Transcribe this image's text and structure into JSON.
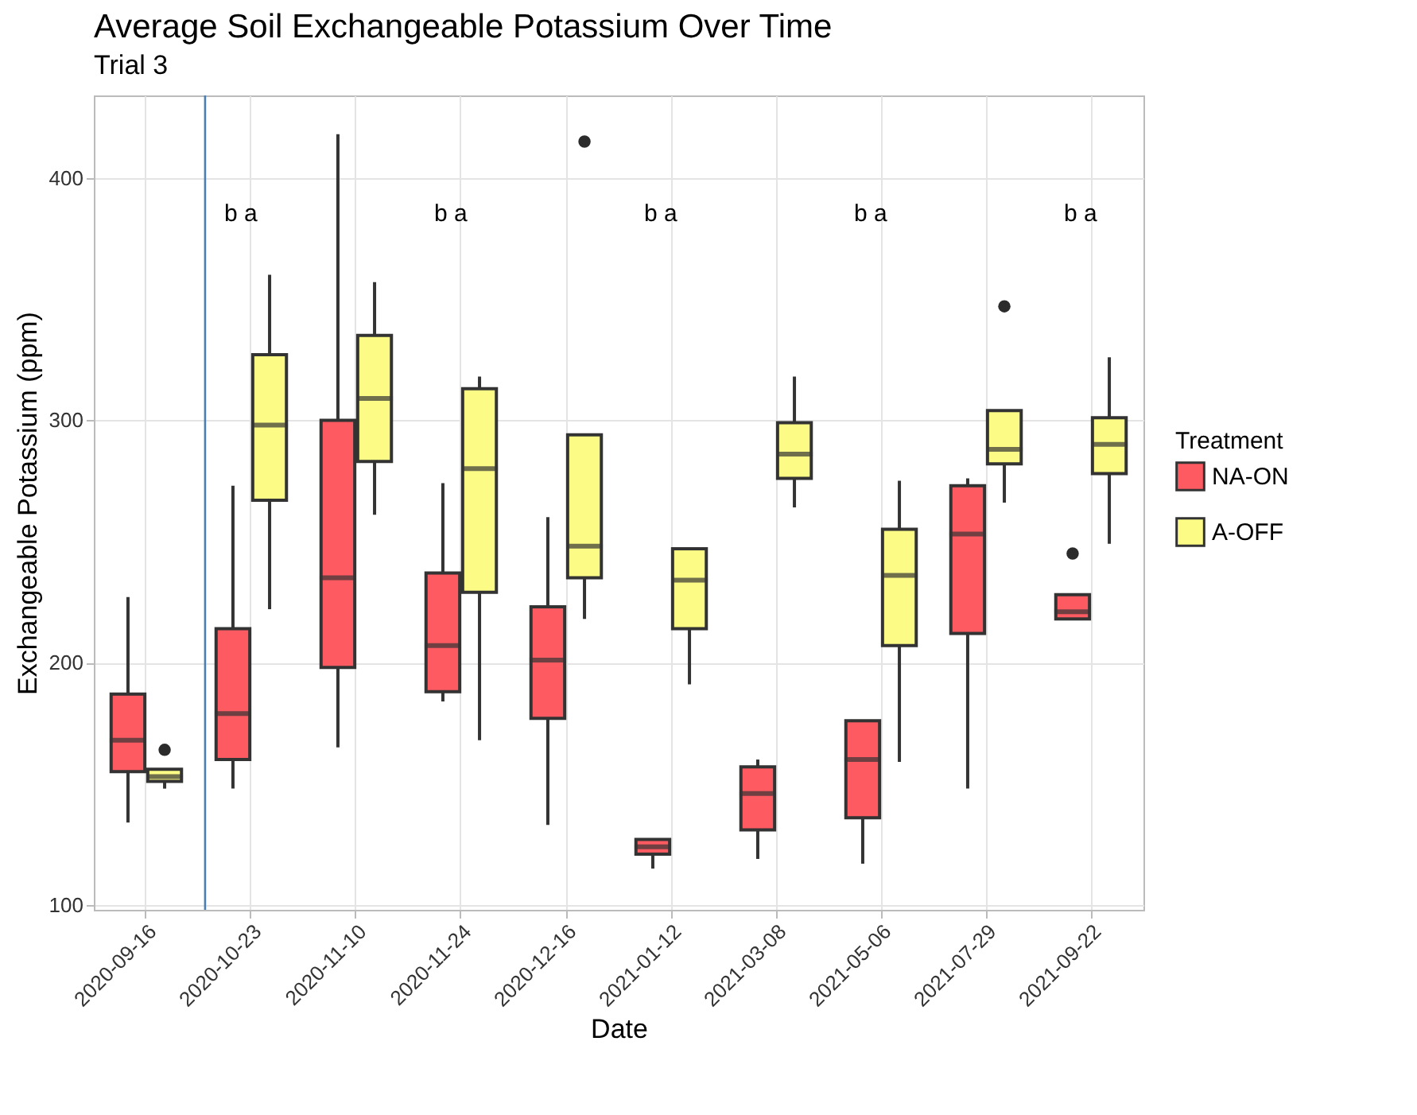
{
  "chart_data": {
    "type": "box",
    "title": "Average Soil Exchangeable Potassium Over Time",
    "subtitle": "Trial 3",
    "xlabel": "Date",
    "ylabel": "Exchangeable Potassium (ppm)",
    "legend_title": "Treatment",
    "legend": "right",
    "grid": true,
    "categories": [
      "2020-09-16",
      "2020-10-23",
      "2020-11-10",
      "2020-11-24",
      "2020-12-16",
      "2021-01-12",
      "2021-03-08",
      "2021-05-06",
      "2021-07-29",
      "2021-09-22"
    ],
    "ylim": [
      98,
      434
    ],
    "yticks": [
      100,
      200,
      300,
      400
    ],
    "series": [
      {
        "name": "NA-ON",
        "color": "#fe5a62",
        "boxes": [
          {
            "low": 134,
            "q1": 155,
            "median": 168,
            "q3": 187,
            "high": 227
          },
          {
            "low": 148,
            "q1": 160,
            "median": 179,
            "q3": 214,
            "high": 273
          },
          {
            "low": 165,
            "q1": 198,
            "median": 235,
            "q3": 300,
            "high": 418
          },
          {
            "low": 184,
            "q1": 188,
            "median": 207,
            "q3": 237,
            "high": 274
          },
          {
            "low": 133,
            "q1": 177,
            "median": 201,
            "q3": 223,
            "high": 260
          },
          {
            "low": 115,
            "q1": 121,
            "median": 124,
            "q3": 127,
            "high": 127
          },
          {
            "low": 119,
            "q1": 131,
            "median": 146,
            "q3": 157,
            "high": 160
          },
          {
            "low": 117,
            "q1": 136,
            "median": 160,
            "q3": 176,
            "high": 176
          },
          {
            "low": 148,
            "q1": 212,
            "median": 253,
            "q3": 273,
            "high": 276
          },
          {
            "low": 218,
            "q1": 218,
            "median": 221,
            "q3": 228,
            "high": 228,
            "outliers": [
              245
            ]
          }
        ]
      },
      {
        "name": "A-OFF",
        "color": "#fbfb85",
        "boxes": [
          {
            "low": 148,
            "q1": 151,
            "median": 153,
            "q3": 156,
            "high": 156,
            "outliers": [
              164
            ]
          },
          {
            "low": 222,
            "q1": 267,
            "median": 298,
            "q3": 327,
            "high": 360
          },
          {
            "low": 261,
            "q1": 283,
            "median": 309,
            "q3": 335,
            "high": 357
          },
          {
            "low": 168,
            "q1": 229,
            "median": 280,
            "q3": 313,
            "high": 318
          },
          {
            "low": 218,
            "q1": 235,
            "median": 248,
            "q3": 294,
            "high": 294,
            "outliers": [
              415
            ]
          },
          {
            "low": 191,
            "q1": 214,
            "median": 234,
            "q3": 247,
            "high": 247
          },
          {
            "low": 264,
            "q1": 276,
            "median": 286,
            "q3": 299,
            "high": 318
          },
          {
            "low": 159,
            "q1": 207,
            "median": 236,
            "q3": 255,
            "high": 275
          },
          {
            "low": 266,
            "q1": 282,
            "median": 288,
            "q3": 304,
            "high": 304,
            "outliers": [
              347
            ]
          },
          {
            "low": 249,
            "q1": 278,
            "median": 290,
            "q3": 301,
            "high": 326
          }
        ]
      }
    ],
    "ref_lines": [
      {
        "axis": "x",
        "value": "2020-10-23",
        "color": "#4a7fb0"
      }
    ],
    "annotations": [
      "b   a",
      "b   a",
      "b   a",
      "b   a",
      "b   a"
    ]
  }
}
